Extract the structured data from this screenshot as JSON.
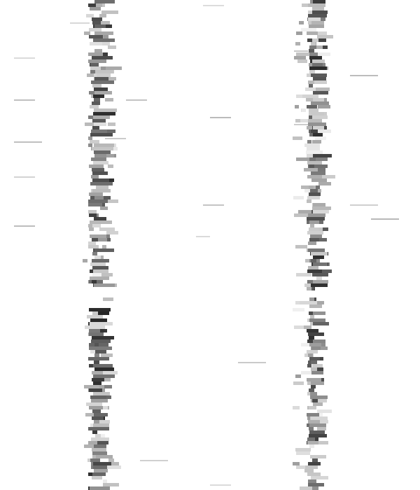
{
  "image": {
    "background_color": "#ffffff",
    "band_color": "#000000",
    "description_visible_text": ""
  }
}
